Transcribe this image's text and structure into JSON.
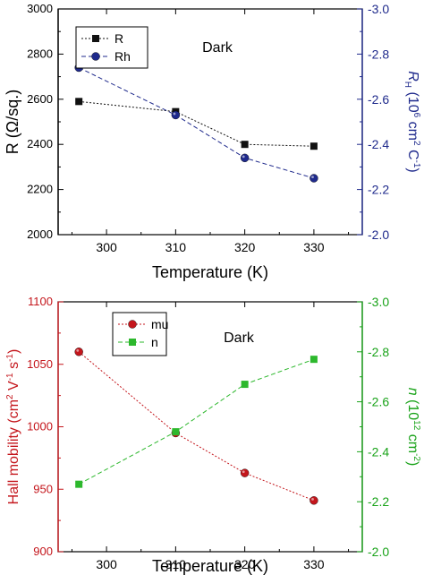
{
  "chart_data": [
    {
      "type": "line",
      "annotation": "Dark",
      "xlabel": "Temperature (K)",
      "x": [
        296,
        310,
        320,
        330
      ],
      "xlim": [
        293,
        337
      ],
      "xticks": [
        300,
        310,
        320,
        330
      ],
      "ylabel_left": "R (Ω/sq.)",
      "ylim_left": [
        2000,
        3000
      ],
      "yticks_left": [
        2000,
        2200,
        2400,
        2600,
        2800,
        3000
      ],
      "ylabel_right": "R_H (10^6 cm^2 C^-1)",
      "ylabel_right_parts": {
        "sym": "R",
        "sub": "H",
        "open": " (10",
        "exp1": "6",
        "mid": " cm",
        "exp2": "2",
        "mid2": " C",
        "exp3": "-1",
        "close": ")"
      },
      "ylim_right": [
        -2.0,
        -3.0
      ],
      "yticks_right": [
        "-2.0",
        "-2.2",
        "-2.4",
        "-2.6",
        "-2.8",
        "-3.0"
      ],
      "left_color": "#000000",
      "right_color": "#1f2a8c",
      "legend_position": "top-left",
      "series": [
        {
          "name": "R",
          "axis": "left",
          "marker": "square",
          "color": "#111111",
          "values": [
            2590,
            2545,
            2400,
            2392
          ]
        },
        {
          "name": "Rh",
          "axis": "right",
          "marker": "circle",
          "color": "#1f2a8c",
          "values": [
            -2.74,
            -2.53,
            -2.34,
            -2.25
          ]
        }
      ]
    },
    {
      "type": "line",
      "annotation": "Dark",
      "xlabel": "Temperature (K)",
      "x": [
        296,
        310,
        320,
        330
      ],
      "xlim": [
        293,
        337
      ],
      "xticks": [
        300,
        310,
        320,
        330
      ],
      "ylabel_left": "Hall mobility (cm^2 V^-1 s^-1)",
      "ylabel_left_parts": {
        "a": "Hall mobility (cm",
        "exp1": "2",
        "b": " V",
        "exp2": "-1",
        "c": " s",
        "exp3": "-1",
        "d": ")"
      },
      "ylim_left": [
        900,
        1100
      ],
      "yticks_left": [
        900,
        950,
        1000,
        1050,
        1100
      ],
      "ylabel_right": "n (10^12 cm^-2)",
      "ylabel_right_parts": {
        "sym": "n",
        "open": " (10",
        "exp1": "12",
        "mid": " cm",
        "exp2": "-2",
        "close": ")"
      },
      "ylim_right": [
        -2.0,
        -3.0
      ],
      "yticks_right": [
        "-2.0",
        "-2.2",
        "-2.4",
        "-2.6",
        "-2.8",
        "-3.0"
      ],
      "left_color": "#c4161c",
      "right_color": "#1aa31a",
      "legend_position": "top-left",
      "series": [
        {
          "name": "mu",
          "axis": "left",
          "marker": "circle",
          "color": "#c4161c",
          "values": [
            1060,
            995,
            963,
            941
          ]
        },
        {
          "name": "n",
          "axis": "right",
          "marker": "square",
          "color": "#2db82d",
          "values": [
            -2.27,
            -2.48,
            -2.67,
            -2.77
          ]
        }
      ]
    }
  ]
}
